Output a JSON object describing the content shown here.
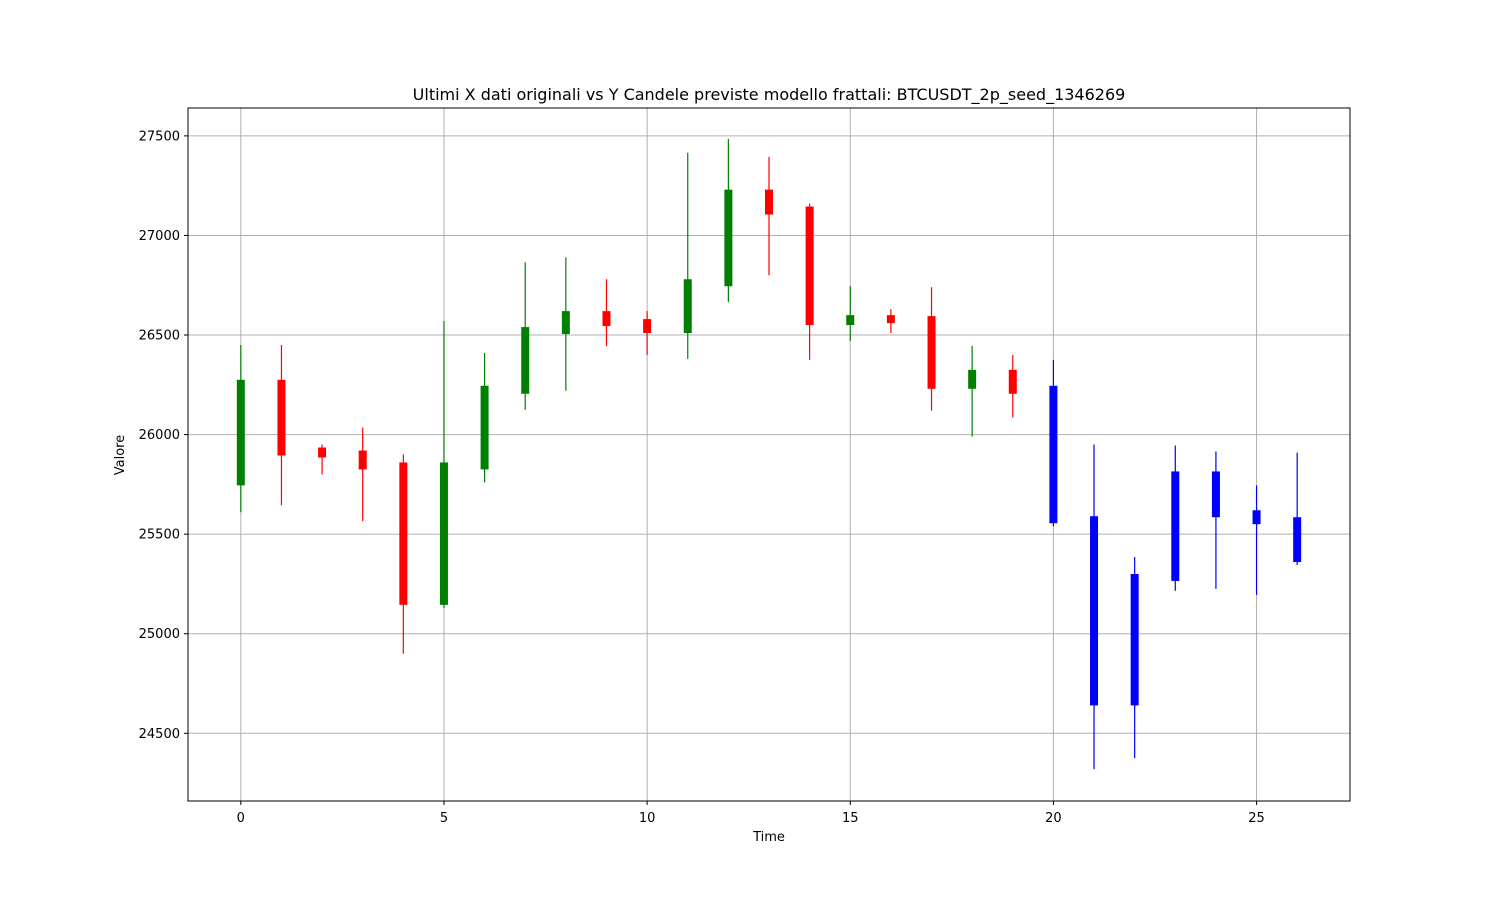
{
  "chart_data": {
    "type": "candlestick",
    "title": "Ultimi X dati originali vs Y Candele previste modello frattali: BTCUSDT_2p_seed_1346269",
    "xlabel": "Time",
    "ylabel": "Valore",
    "xlim": [
      -1.3,
      27.3
    ],
    "ylim": [
      24160,
      27640
    ],
    "xticks": [
      0,
      5,
      10,
      15,
      20,
      25
    ],
    "yticks": [
      24500,
      25000,
      25500,
      26000,
      26500,
      27000,
      27500
    ],
    "grid": true,
    "colors": {
      "up": "#008000",
      "down": "#ff0000",
      "predicted": "#0000ff"
    },
    "candles": [
      {
        "t": 0,
        "open": 25745,
        "high": 26450,
        "low": 25610,
        "close": 26275,
        "kind": "original"
      },
      {
        "t": 1,
        "open": 26275,
        "high": 26450,
        "low": 25645,
        "close": 25895,
        "kind": "original"
      },
      {
        "t": 2,
        "open": 25935,
        "high": 25950,
        "low": 25800,
        "close": 25885,
        "kind": "original"
      },
      {
        "t": 3,
        "open": 25920,
        "high": 26035,
        "low": 25565,
        "close": 25825,
        "kind": "original"
      },
      {
        "t": 4,
        "open": 25860,
        "high": 25900,
        "low": 24900,
        "close": 25145,
        "kind": "original"
      },
      {
        "t": 5,
        "open": 25145,
        "high": 26570,
        "low": 25130,
        "close": 25860,
        "kind": "original"
      },
      {
        "t": 6,
        "open": 25825,
        "high": 26410,
        "low": 25760,
        "close": 26245,
        "kind": "original"
      },
      {
        "t": 7,
        "open": 26205,
        "high": 26865,
        "low": 26125,
        "close": 26540,
        "kind": "original"
      },
      {
        "t": 8,
        "open": 26505,
        "high": 26890,
        "low": 26220,
        "close": 26620,
        "kind": "original"
      },
      {
        "t": 9,
        "open": 26620,
        "high": 26780,
        "low": 26445,
        "close": 26545,
        "kind": "original"
      },
      {
        "t": 10,
        "open": 26580,
        "high": 26620,
        "low": 26400,
        "close": 26510,
        "kind": "original"
      },
      {
        "t": 11,
        "open": 26510,
        "high": 27415,
        "low": 26380,
        "close": 26780,
        "kind": "original"
      },
      {
        "t": 12,
        "open": 26745,
        "high": 27485,
        "low": 26665,
        "close": 27230,
        "kind": "original"
      },
      {
        "t": 13,
        "open": 27230,
        "high": 27395,
        "low": 26800,
        "close": 27105,
        "kind": "original"
      },
      {
        "t": 14,
        "open": 27145,
        "high": 27160,
        "low": 26375,
        "close": 26550,
        "kind": "original"
      },
      {
        "t": 15,
        "open": 26550,
        "high": 26745,
        "low": 26470,
        "close": 26600,
        "kind": "original"
      },
      {
        "t": 16,
        "open": 26600,
        "high": 26630,
        "low": 26510,
        "close": 26560,
        "kind": "original"
      },
      {
        "t": 17,
        "open": 26595,
        "high": 26740,
        "low": 26120,
        "close": 26230,
        "kind": "original"
      },
      {
        "t": 18,
        "open": 26230,
        "high": 26445,
        "low": 25990,
        "close": 26325,
        "kind": "original"
      },
      {
        "t": 19,
        "open": 26325,
        "high": 26400,
        "low": 26085,
        "close": 26205,
        "kind": "original"
      },
      {
        "t": 20,
        "open": 26245,
        "high": 26375,
        "low": 25540,
        "close": 25555,
        "kind": "predicted"
      },
      {
        "t": 21,
        "open": 25590,
        "high": 25950,
        "low": 24320,
        "close": 24640,
        "kind": "predicted"
      },
      {
        "t": 22,
        "open": 24640,
        "high": 25385,
        "low": 24375,
        "close": 25300,
        "kind": "predicted"
      },
      {
        "t": 23,
        "open": 25265,
        "high": 25945,
        "low": 25215,
        "close": 25815,
        "kind": "predicted"
      },
      {
        "t": 24,
        "open": 25815,
        "high": 25915,
        "low": 25225,
        "close": 25585,
        "kind": "predicted"
      },
      {
        "t": 25,
        "open": 25620,
        "high": 25745,
        "low": 25195,
        "close": 25550,
        "kind": "predicted"
      },
      {
        "t": 26,
        "open": 25585,
        "high": 25910,
        "low": 25345,
        "close": 25360,
        "kind": "predicted"
      }
    ]
  }
}
